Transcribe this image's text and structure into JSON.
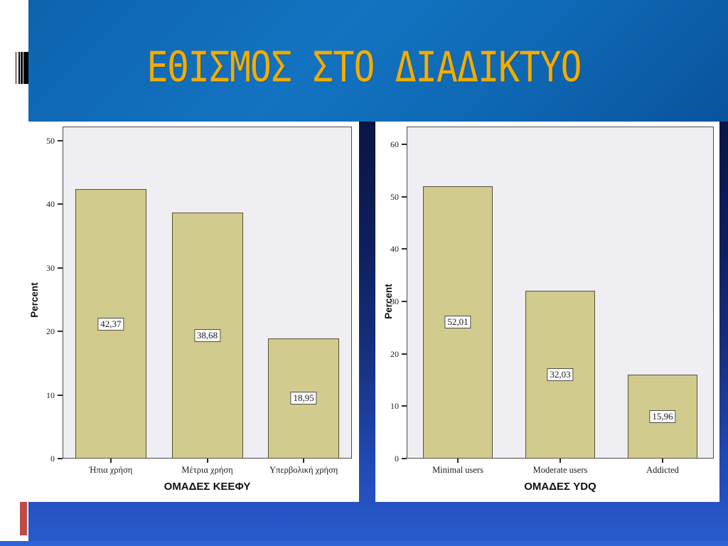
{
  "slide": {
    "title": "ΕΘΙΣΜΟΣ ΣΤΟ ΔΙΑΔΙΚΤΥΟ",
    "title_color": "#F2AC05",
    "band_color": "#1373c1",
    "backdrop_top_color": "#0a1545",
    "backdrop_bottom_color": "#2a5ccf",
    "accent_red": "#bf4b47",
    "bar_fill": "#d2cb8e",
    "plot_background": "#efeef3"
  },
  "chart_data": [
    {
      "type": "bar",
      "title": "",
      "categories": [
        "Ήπια χρήση",
        "Μέτρια χρήση",
        "Υπερβολική χρήση"
      ],
      "values": [
        42.37,
        38.68,
        18.95
      ],
      "value_labels": [
        "42,37",
        "38,68",
        "18,95"
      ],
      "xlabel": "ΟΜΑΔΕΣ ΚΕΕΦΥ",
      "ylabel": "Percent",
      "ylim": [
        0,
        50
      ],
      "yticks": [
        0,
        10,
        20,
        30,
        40,
        50
      ],
      "grid": false,
      "legend": "none",
      "bar_color": "#d2cb8e"
    },
    {
      "type": "bar",
      "title": "",
      "categories": [
        "Minimal users",
        "Moderate users",
        "Addicted"
      ],
      "values": [
        52.01,
        32.03,
        15.96
      ],
      "value_labels": [
        "52,01",
        "32,03",
        "15,96"
      ],
      "xlabel": "ΟΜΑΔΕΣ YDQ",
      "ylabel": "Percent",
      "ylim": [
        0,
        60
      ],
      "yticks": [
        0,
        10,
        20,
        30,
        40,
        50,
        60
      ],
      "grid": false,
      "legend": "none",
      "bar_color": "#d2cb8e"
    }
  ]
}
